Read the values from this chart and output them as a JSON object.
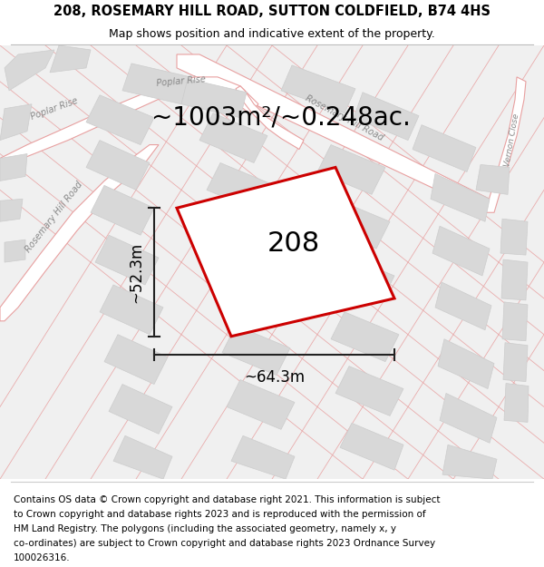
{
  "title": "208, ROSEMARY HILL ROAD, SUTTON COLDFIELD, B74 4HS",
  "subtitle": "Map shows position and indicative extent of the property.",
  "area_text": "~1003m²/~0.248ac.",
  "property_number": "208",
  "width_label": "~64.3m",
  "height_label": "~52.3m",
  "footer_lines": [
    "Contains OS data © Crown copyright and database right 2021. This information is subject",
    "to Crown copyright and database rights 2023 and is reproduced with the permission of",
    "HM Land Registry. The polygons (including the associated geometry, namely x, y",
    "co-ordinates) are subject to Crown copyright and database rights 2023 Ordnance Survey",
    "100026316."
  ],
  "map_bg": "#f0f0f0",
  "road_fill": "#ffffff",
  "road_edge": "#e8a0a0",
  "block_fill": "#d8d8d8",
  "block_edge": "#cccccc",
  "property_fill": "#ffffff",
  "property_edge": "#cc0000",
  "dim_color": "#222222",
  "label_color": "#888888",
  "title_fontsize": 10.5,
  "subtitle_fontsize": 9,
  "area_fontsize": 20,
  "dim_fontsize": 12,
  "prop_fontsize": 22,
  "road_label_fontsize": 7,
  "footer_fontsize": 7.5
}
